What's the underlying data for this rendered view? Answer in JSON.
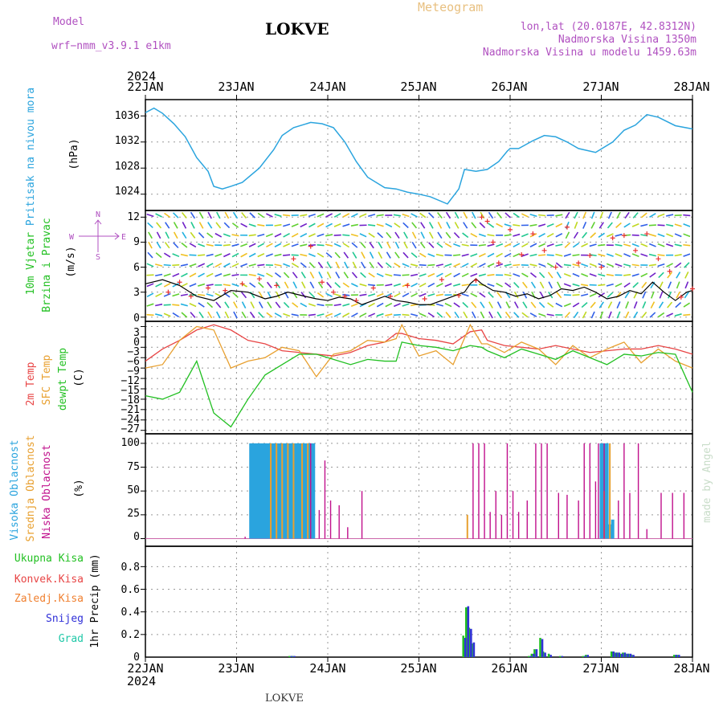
{
  "header": {
    "model_label": "Model",
    "model_name": "wrf−nmm_v3.9.1  e1km",
    "station": "LOKVE",
    "product": "Meteogram",
    "lonlat": "lon,lat (20.0187E, 42.8312N)",
    "elevation": "Nadmorska Visina 1350m",
    "model_elevation": "Nadmorska Visina u modelu 1459.63m",
    "credit": "made by Angel",
    "footer_station": "LOKVE"
  },
  "colors": {
    "pressure": "#2aa4de",
    "temp2m": "#e84545",
    "sfc_temp": "#e8a030",
    "dewpt": "#22c022",
    "cloud_high": "#2aa4de",
    "cloud_mid": "#e8a030",
    "cloud_low": "#c0108c",
    "precip_total": "#22c022",
    "precip_conv": "#e84545",
    "precip_frozen": "#f08030",
    "precip_snow": "#3030d8",
    "precip_graupel": "#20c8a8",
    "title_wind": "#22c022",
    "title_pressure": "#2aa4de",
    "wind_legend": "#b050c0"
  },
  "time_axis": {
    "year": "2024",
    "ticks": [
      "22JAN",
      "23JAN",
      "24JAN",
      "25JAN",
      "26JAN",
      "27JAN",
      "28JAN"
    ]
  },
  "panels": {
    "pressure": {
      "title": "Pritisak na nivou mora",
      "unit": "(hPa)",
      "ticks": [
        "1024",
        "1028",
        "1032",
        "1036"
      ]
    },
    "wind": {
      "title1": "10m Vjetar",
      "title2": "Brzina i Pravac",
      "unit": "(m/s)",
      "ticks": [
        "0",
        "3",
        "6",
        "9",
        "12"
      ],
      "compass_n": "N",
      "compass_s": "S",
      "compass_w": "W",
      "compass_e": "E"
    },
    "temp": {
      "title1": "2m Temp",
      "title2": "SFC Temp",
      "title3": "dewpt Temp",
      "unit": "(C)",
      "ticks": [
        "3",
        "0",
        "−3",
        "−6",
        "−9",
        "−12",
        "−15",
        "−18",
        "−21",
        "−24",
        "−27"
      ]
    },
    "cloud": {
      "title1": "Visoka Oblacnost",
      "title2": "Srednja Oblacnost",
      "title3": "Niska Oblacnost",
      "unit": "(%)",
      "ticks": [
        "0",
        "25",
        "50",
        "75",
        "100"
      ]
    },
    "precip": {
      "legend": [
        "Ukupna Kisa",
        "Konvek.Kisa",
        "Zaledj.Kisa",
        "Snijeg",
        "Grad"
      ],
      "unit": "1hr Precip (mm)",
      "ticks": [
        "0",
        "0.2",
        "0.4",
        "0.6",
        "0.8"
      ]
    }
  },
  "chart_data": [
    {
      "type": "line",
      "name": "pressure",
      "ylim": [
        1021.5,
        1038.5
      ],
      "x": [
        0,
        3,
        6,
        10,
        14,
        18,
        22,
        24,
        27,
        30,
        34,
        40,
        45,
        48,
        52,
        58,
        62,
        66,
        70,
        74,
        78,
        84,
        88,
        92,
        96,
        100,
        106,
        110,
        112,
        116,
        120,
        124,
        127,
        128,
        131,
        136,
        140,
        144,
        148,
        152,
        158,
        164,
        168,
        172,
        176,
        180,
        186,
        192
      ],
      "values": [
        1036.5,
        1037.2,
        1036.4,
        1034.8,
        1032.8,
        1029.6,
        1027.5,
        1025.2,
        1024.8,
        1025.2,
        1025.8,
        1028.0,
        1030.8,
        1033.0,
        1034.2,
        1035.0,
        1034.8,
        1034.2,
        1032.0,
        1029.0,
        1026.6,
        1025.0,
        1024.8,
        1024.3,
        1024.0,
        1023.6,
        1022.5,
        1024.8,
        1027.8,
        1027.5,
        1027.8,
        1029.0,
        1030.6,
        1031.0,
        1031.0,
        1032.2,
        1033.0,
        1032.8,
        1032.0,
        1031.0,
        1030.4,
        1032.0,
        1033.8,
        1034.6,
        1036.2,
        1035.8,
        1034.5,
        1034.0
      ]
    },
    {
      "type": "line",
      "name": "wind_speed",
      "ylim": [
        -0.5,
        12.8
      ],
      "x": [
        0,
        6,
        12,
        18,
        24,
        30,
        36,
        42,
        46,
        50,
        56,
        60,
        64,
        68,
        72,
        76,
        80,
        84,
        88,
        92,
        96,
        100,
        104,
        108,
        112,
        114,
        116,
        118,
        122,
        126,
        130,
        134,
        138,
        142,
        146,
        150,
        154,
        158,
        162,
        166,
        170,
        174,
        178,
        182,
        186,
        190,
        192
      ],
      "values": [
        4.0,
        4.5,
        3.8,
        2.5,
        2.0,
        3.2,
        3.0,
        2.2,
        2.5,
        3.0,
        2.5,
        2.2,
        2.0,
        2.4,
        2.2,
        1.5,
        2.0,
        2.5,
        2.0,
        1.8,
        1.5,
        1.5,
        2.0,
        2.5,
        3.0,
        4.0,
        4.6,
        4.0,
        3.2,
        3.0,
        2.5,
        2.8,
        2.2,
        2.6,
        3.4,
        3.2,
        3.6,
        3.0,
        2.2,
        2.5,
        3.2,
        2.8,
        4.2,
        3.0,
        2.0,
        3.0,
        3.2
      ]
    },
    {
      "type": "scatter",
      "name": "wind_gust_marks",
      "ylim": [
        -0.5,
        12.8
      ],
      "x": [
        8,
        12,
        16,
        22,
        28,
        34,
        40,
        46,
        52,
        58,
        62,
        66,
        70,
        74,
        80,
        86,
        92,
        98,
        104,
        110,
        116,
        118,
        120,
        122,
        124,
        128,
        132,
        136,
        140,
        144,
        148,
        152,
        156,
        160,
        164,
        168,
        172,
        176,
        180,
        184,
        188,
        192
      ],
      "values": [
        3.0,
        4.2,
        2.5,
        3.5,
        3.2,
        4.0,
        4.6,
        3.8,
        7.0,
        8.5,
        4.2,
        3.0,
        2.5,
        2.0,
        3.5,
        2.5,
        3.8,
        2.2,
        4.5,
        2.6,
        4.4,
        12.0,
        11.5,
        9.0,
        6.5,
        10.5,
        7.5,
        10.0,
        8.0,
        6.0,
        10.8,
        6.5,
        7.4,
        6.0,
        9.5,
        9.8,
        8.0,
        10.0,
        7.0,
        5.5,
        2.4,
        3.4
      ]
    },
    {
      "type": "line",
      "name": "temperature",
      "ylim": [
        -28.0,
        4.5
      ],
      "x": [
        0,
        6,
        12,
        18,
        24,
        30,
        36,
        42,
        48,
        54,
        60,
        66,
        72,
        78,
        84,
        88,
        90,
        96,
        102,
        108,
        114,
        118,
        120,
        126,
        132,
        138,
        144,
        150,
        156,
        162,
        168,
        174,
        180,
        186,
        192
      ],
      "series": [
        {
          "name": "2m Temp",
          "values": [
            -7.0,
            -3.5,
            -1.0,
            2.0,
            3.5,
            2.0,
            -1.0,
            -2.0,
            -4.0,
            -4.5,
            -5.0,
            -5.5,
            -4.5,
            -2.5,
            -1.5,
            1.0,
            1.0,
            -0.5,
            -1.0,
            -2.0,
            1.5,
            2.0,
            -1.0,
            -2.5,
            -3.0,
            -3.5,
            -2.5,
            -3.5,
            -4.5,
            -4.0,
            -3.5,
            -3.5,
            -2.5,
            -3.5,
            -5.0
          ]
        },
        {
          "name": "SFC Temp",
          "values": [
            -9.0,
            -8.0,
            -1.0,
            3.0,
            2.0,
            -9.0,
            -7.0,
            -6.0,
            -3.0,
            -4.0,
            -11.5,
            -5.0,
            -4.0,
            -1.0,
            -1.5,
            -0.5,
            3.5,
            -5.5,
            -4.0,
            -8.0,
            3.5,
            -2.0,
            -2.0,
            -4.5,
            -1.5,
            -3.5,
            -8.0,
            -2.5,
            -6.0,
            -3.5,
            -1.5,
            -7.5,
            -3.5,
            -7.0,
            -9.0
          ]
        },
        {
          "name": "dewpt Temp",
          "values": [
            -17.0,
            -18.0,
            -16.0,
            -7.0,
            -22.0,
            -26.0,
            -18.0,
            -11.0,
            -8.0,
            -5.0,
            -5.0,
            -6.5,
            -8.0,
            -6.5,
            -7.0,
            -7.0,
            -1.5,
            -2.5,
            -3.0,
            -4.0,
            -2.5,
            -3.0,
            -4.0,
            -6.0,
            -3.5,
            -5.0,
            -6.5,
            -4.0,
            -6.0,
            -8.0,
            -5.0,
            -5.5,
            -4.5,
            -5.0,
            -16.0
          ]
        }
      ]
    },
    {
      "type": "bar",
      "name": "cloud_cover",
      "ylim": [
        -8,
        110
      ],
      "series": [
        {
          "name": "Visoka Oblacnost",
          "x": [
            37,
            38,
            39,
            40,
            41,
            42,
            43,
            44,
            45,
            46,
            47,
            48,
            49,
            50,
            51,
            52,
            53,
            54,
            55,
            56,
            57,
            58,
            59,
            160,
            161,
            162,
            163,
            164
          ],
          "values": [
            100,
            100,
            100,
            100,
            100,
            100,
            100,
            100,
            100,
            100,
            100,
            100,
            100,
            100,
            100,
            100,
            100,
            100,
            100,
            100,
            100,
            100,
            100,
            100,
            100,
            100,
            15,
            20
          ]
        },
        {
          "name": "Srednja Oblacnost",
          "x": [
            44,
            46,
            48,
            50,
            52,
            55,
            57,
            113,
            161,
            163
          ],
          "values": [
            100,
            100,
            100,
            100,
            100,
            100,
            100,
            25,
            50,
            100
          ]
        },
        {
          "name": "Niska Oblacnost",
          "x": [
            35,
            58,
            61,
            63,
            65,
            68,
            71,
            76,
            115,
            117,
            119,
            121,
            123,
            125,
            127,
            129,
            131,
            134,
            137,
            139,
            141,
            145,
            148,
            152,
            154,
            156,
            158,
            159,
            161,
            166,
            168,
            170,
            173,
            176,
            181,
            185,
            189
          ],
          "values": [
            2,
            100,
            30,
            82,
            40,
            35,
            12,
            50,
            100,
            100,
            100,
            28,
            50,
            25,
            100,
            50,
            28,
            40,
            100,
            100,
            100,
            48,
            46,
            40,
            100,
            100,
            60,
            100,
            100,
            40,
            100,
            48,
            100,
            10,
            48,
            48,
            48
          ]
        }
      ]
    },
    {
      "type": "bar",
      "name": "precip",
      "ylim": [
        0,
        0.98
      ],
      "series": [
        {
          "name": "Ukupna Kisa",
          "x": [
            51,
            52,
            112,
            113,
            114,
            115,
            135,
            136,
            137,
            139,
            140,
            142,
            146,
            154,
            155,
            164,
            165,
            166,
            167,
            168,
            169,
            170,
            171,
            186,
            187
          ],
          "values": [
            0.01,
            0.01,
            0.19,
            0.44,
            0.26,
            0.12,
            0.01,
            0.03,
            0.07,
            0.17,
            0.05,
            0.03,
            0.01,
            0.01,
            0.02,
            0.05,
            0.04,
            0.04,
            0.03,
            0.04,
            0.03,
            0.03,
            0.02,
            0.02,
            0.02
          ]
        },
        {
          "name": "Konvek.Kisa",
          "x": [
            113,
            114
          ],
          "values": [
            0.02,
            0.08
          ]
        },
        {
          "name": "Snijeg",
          "x": [
            51,
            52,
            112,
            113,
            114,
            115,
            135,
            136,
            137,
            139,
            140,
            142,
            146,
            154,
            155,
            164,
            165,
            166,
            167,
            168,
            169,
            170,
            171,
            186,
            187
          ],
          "values": [
            0.01,
            0.01,
            0.17,
            0.45,
            0.25,
            0.13,
            0.01,
            0.03,
            0.07,
            0.16,
            0.04,
            0.02,
            0.01,
            0.01,
            0.02,
            0.05,
            0.04,
            0.04,
            0.03,
            0.04,
            0.03,
            0.03,
            0.02,
            0.02,
            0.02
          ]
        }
      ]
    }
  ]
}
